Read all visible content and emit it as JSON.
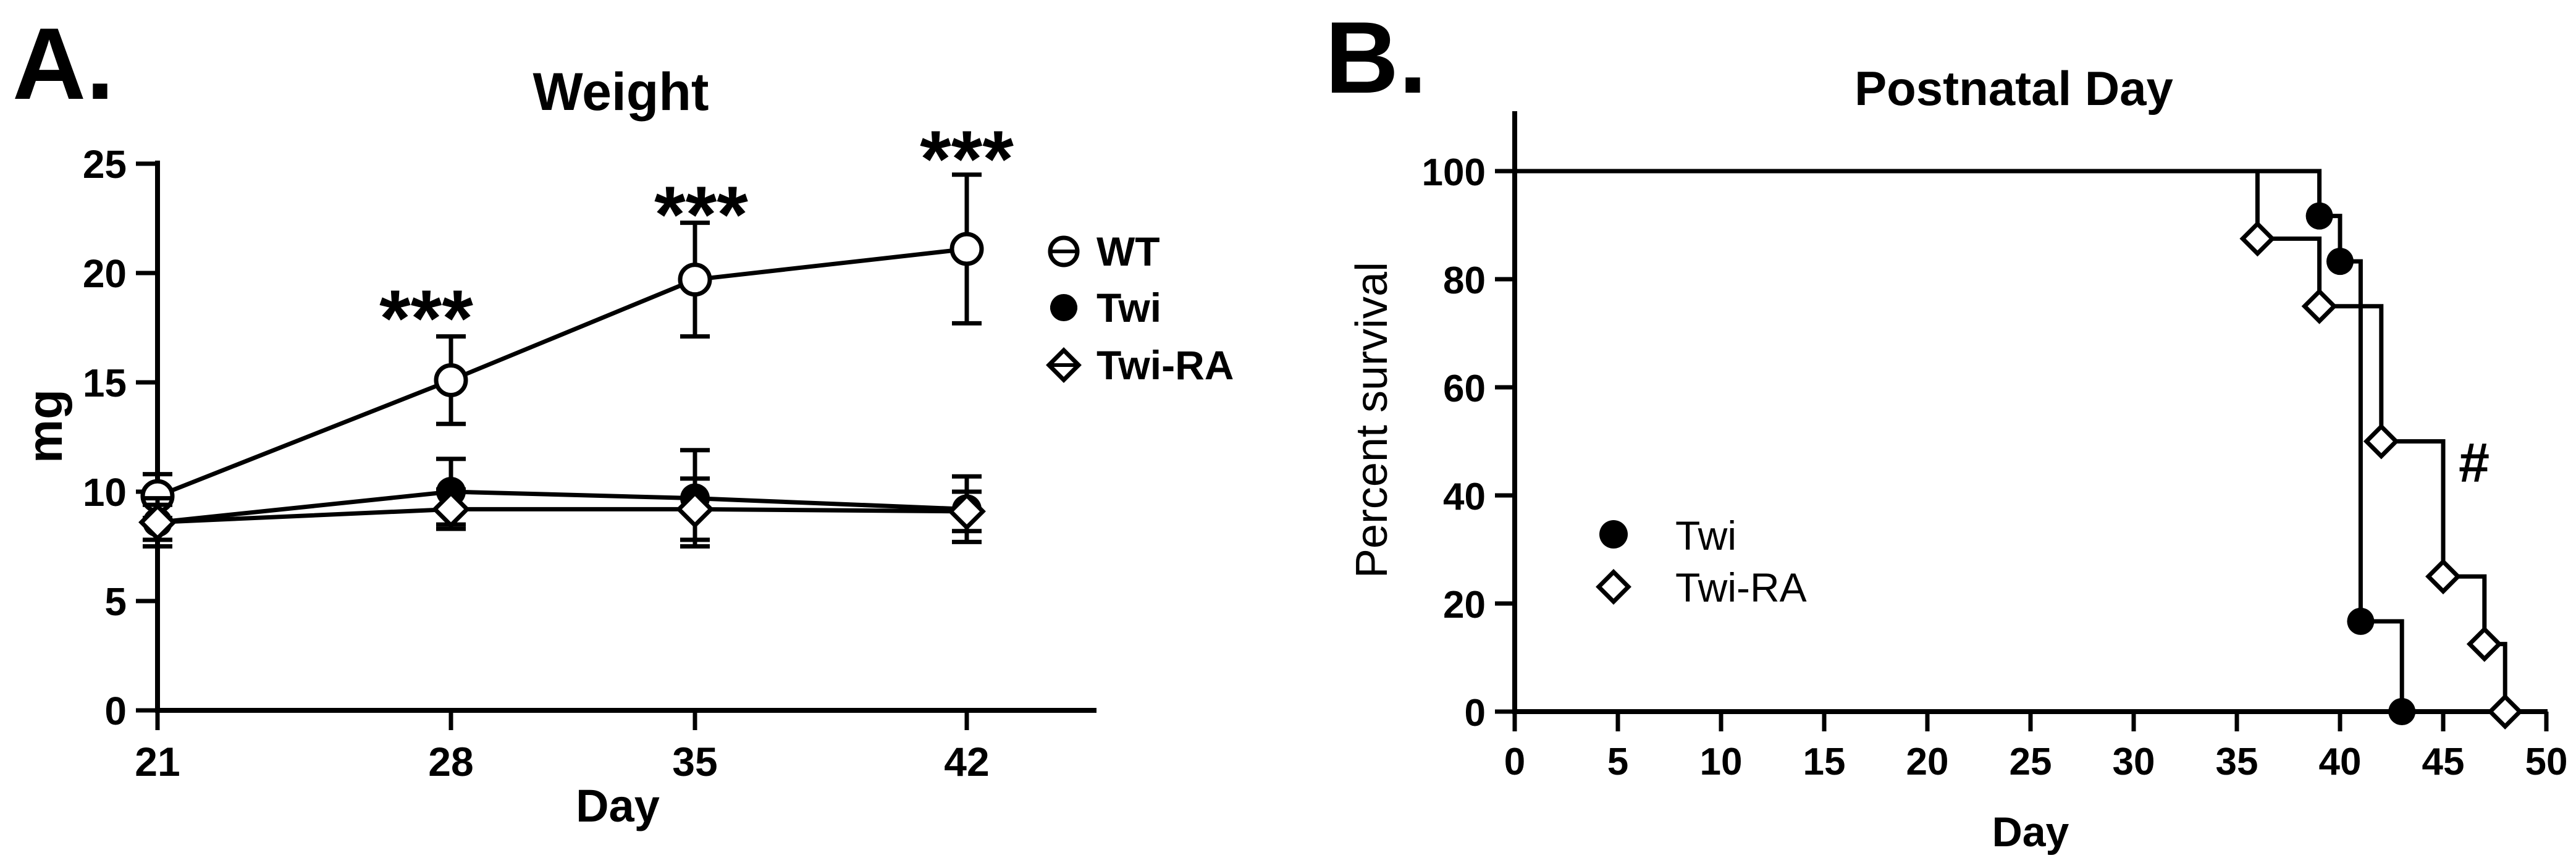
{
  "panels": [
    {
      "letter": "A.",
      "chart_data": {
        "type": "line",
        "title": "Weight",
        "xlabel": "Day",
        "ylabel": "mg",
        "x": [
          21,
          28,
          35,
          42
        ],
        "xticks": [
          "21",
          "28",
          "35",
          "42"
        ],
        "yticks": [
          "0",
          "5",
          "10",
          "15",
          "20",
          "25"
        ],
        "xlim": [
          21,
          46
        ],
        "ylim": [
          0,
          25
        ],
        "legend_position": "right",
        "series": [
          {
            "name": "WT",
            "marker": "open-circle",
            "values": [
              9.8,
              15.1,
              19.7,
              21.1
            ],
            "errors": [
              1.0,
              2.0,
              2.6,
              3.4
            ]
          },
          {
            "name": "Twi",
            "marker": "filled-circle",
            "values": [
              8.6,
              10.0,
              9.7,
              9.2
            ],
            "errors": [
              1.1,
              1.5,
              2.2,
              1.5
            ]
          },
          {
            "name": "Twi-RA",
            "marker": "open-diamond",
            "values": [
              8.6,
              9.2,
              9.2,
              9.1
            ],
            "errors": [
              0.8,
              0.9,
              1.4,
              0.9
            ]
          }
        ],
        "annotations": [
          {
            "text": "***",
            "x": 28,
            "y": 17.2
          },
          {
            "text": "***",
            "x": 35,
            "y": 22.2
          },
          {
            "text": "***",
            "x": 42,
            "y": 24.5
          }
        ]
      }
    },
    {
      "letter": "B.",
      "chart_data": {
        "type": "line",
        "subtype": "survival-step",
        "title": "Postnatal Day",
        "xlabel": "Day",
        "ylabel": "Percent survival",
        "xticks": [
          "0",
          "5",
          "10",
          "15",
          "20",
          "25",
          "30",
          "35",
          "40",
          "45",
          "50"
        ],
        "yticks": [
          "0",
          "20",
          "40",
          "60",
          "80",
          "100"
        ],
        "xlim": [
          0,
          50
        ],
        "ylim": [
          0,
          110
        ],
        "legend_position": "bottom-left",
        "series": [
          {
            "name": "Twi",
            "marker": "filled-circle",
            "steps": [
              [
                0,
                100
              ],
              [
                39,
                100
              ],
              [
                39,
                91.7
              ],
              [
                40,
                91.7
              ],
              [
                40,
                83.3
              ],
              [
                41,
                83.3
              ],
              [
                41,
                16.7
              ],
              [
                43,
                16.7
              ],
              [
                43,
                0
              ]
            ],
            "points": [
              [
                39,
                91.7
              ],
              [
                40,
                83.3
              ],
              [
                41,
                16.7
              ],
              [
                43,
                0
              ]
            ]
          },
          {
            "name": "Twi-RA",
            "marker": "open-diamond",
            "steps": [
              [
                0,
                100
              ],
              [
                36,
                100
              ],
              [
                36,
                87.5
              ],
              [
                39,
                87.5
              ],
              [
                39,
                75
              ],
              [
                42,
                75
              ],
              [
                42,
                50
              ],
              [
                45,
                50
              ],
              [
                45,
                25
              ],
              [
                47,
                25
              ],
              [
                47,
                12.5
              ],
              [
                48,
                12.5
              ],
              [
                48,
                0
              ]
            ],
            "points": [
              [
                36,
                87.5
              ],
              [
                39,
                75
              ],
              [
                42,
                50
              ],
              [
                45,
                25
              ],
              [
                47,
                12.5
              ],
              [
                48,
                0
              ]
            ]
          }
        ],
        "annotations": [
          {
            "text": "#",
            "x": 46.5,
            "y": 44
          }
        ]
      }
    }
  ]
}
